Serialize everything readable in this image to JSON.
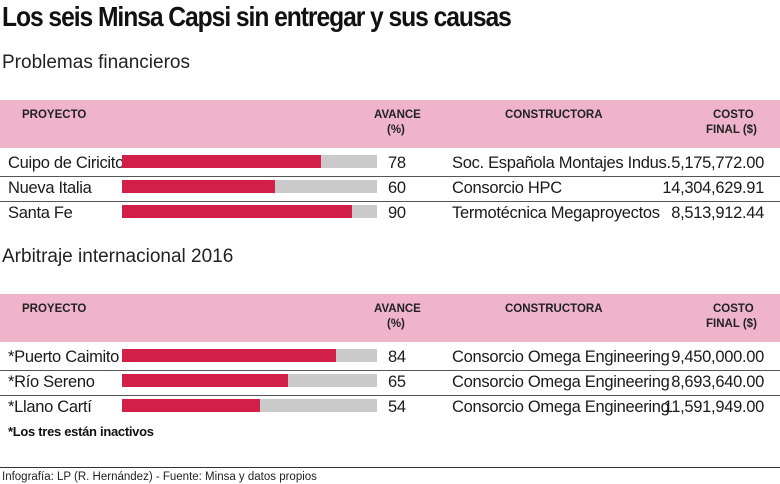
{
  "title": "Los seis Minsa Capsi sin entregar y sus causas",
  "headers": {
    "project": "PROYECTO",
    "progress_line1": "AVANCE",
    "progress_line2": "(%)",
    "builder": "CONSTRUCTORA",
    "cost_line1": "COSTO",
    "cost_line2": "FINAL ($)"
  },
  "colors": {
    "bar_fill": "#d21f47",
    "bar_track": "#cacaca",
    "header_band": "#efb4c9"
  },
  "chart_data": {
    "type": "bar",
    "groups": [
      {
        "title": "Problemas financieros",
        "rows": [
          {
            "project": "Cuipo de Ciricito",
            "progress": 78,
            "builder": "Soc. Española Montajes Indus.",
            "cost": "5,175,772.00"
          },
          {
            "project": "Nueva Italia",
            "progress": 60,
            "builder": "Consorcio HPC",
            "cost": "14,304,629.91"
          },
          {
            "project": "Santa Fe",
            "progress": 90,
            "builder": "Termotécnica Megaproyectos",
            "cost": "8,513,912.44"
          }
        ]
      },
      {
        "title": "Arbitraje internacional 2016",
        "rows": [
          {
            "project": "*Puerto Caimito",
            "progress": 84,
            "builder": "Consorcio Omega Engineering",
            "cost": "9,450,000.00"
          },
          {
            "project": "*Río Sereno",
            "progress": 65,
            "builder": "Consorcio Omega Engineering",
            "cost": "8,693,640.00"
          },
          {
            "project": "*Llano Cartí",
            "progress": 54,
            "builder": "Consorcio Omega Engineering",
            "cost": "11,591,949.00"
          }
        ]
      }
    ],
    "xlim": [
      0,
      100
    ]
  },
  "footnote": "*Los tres están inactivos",
  "source": "Infografía: LP (R. Hernández) - Fuente: Minsa y datos propios"
}
